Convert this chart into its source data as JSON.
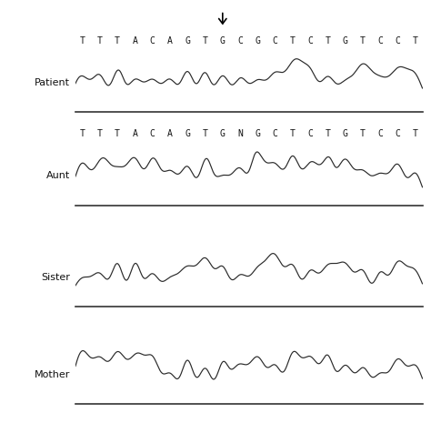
{
  "labels_patient": [
    "T",
    "T",
    "T",
    "A",
    "C",
    "A",
    "G",
    "T",
    "G",
    "C",
    "G",
    "C",
    "T",
    "C",
    "T",
    "G",
    "T",
    "C",
    "C",
    "T"
  ],
  "labels_aunt": [
    "T",
    "T",
    "T",
    "A",
    "C",
    "A",
    "G",
    "T",
    "G",
    "N",
    "G",
    "C",
    "T",
    "C",
    "T",
    "G",
    "T",
    "C",
    "C",
    "T"
  ],
  "row_labels": [
    "Patient",
    "Aunt",
    "Sister",
    "Mother"
  ],
  "background_color": "#ffffff",
  "trace_color": "#2a2a2a",
  "label_color": "#111111",
  "seq_fontsize": 7.0,
  "row_label_fontsize": 8.0,
  "n_peaks": 20,
  "arrow_peak_idx": 8
}
